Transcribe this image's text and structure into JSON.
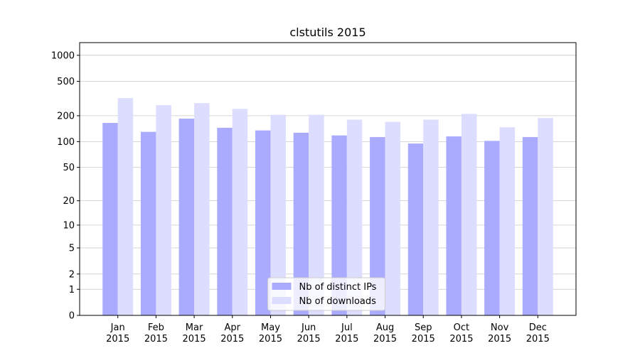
{
  "chart_data": {
    "type": "bar",
    "title": "clstutils 2015",
    "categories": [
      [
        "Jan",
        "2015"
      ],
      [
        "Feb",
        "2015"
      ],
      [
        "Mar",
        "2015"
      ],
      [
        "Apr",
        "2015"
      ],
      [
        "May",
        "2015"
      ],
      [
        "Jun",
        "2015"
      ],
      [
        "Jul",
        "2015"
      ],
      [
        "Aug",
        "2015"
      ],
      [
        "Sep",
        "2015"
      ],
      [
        "Oct",
        "2015"
      ],
      [
        "Nov",
        "2015"
      ],
      [
        "Dec",
        "2015"
      ]
    ],
    "series": [
      {
        "name": "Nb of distinct IPs",
        "color": "#aaaaff",
        "values": [
          165,
          130,
          185,
          145,
          135,
          127,
          118,
          113,
          95,
          115,
          102,
          113
        ]
      },
      {
        "name": "Nb of downloads",
        "color": "#ddddff",
        "values": [
          320,
          265,
          280,
          240,
          205,
          205,
          180,
          170,
          180,
          210,
          147,
          188
        ]
      }
    ],
    "yscale": "log1p",
    "ylim": [
      0,
      1400
    ],
    "yticks": [
      0,
      1,
      2,
      5,
      10,
      20,
      50,
      100,
      200,
      500,
      1000
    ],
    "grid": true,
    "legend": "lower center"
  }
}
